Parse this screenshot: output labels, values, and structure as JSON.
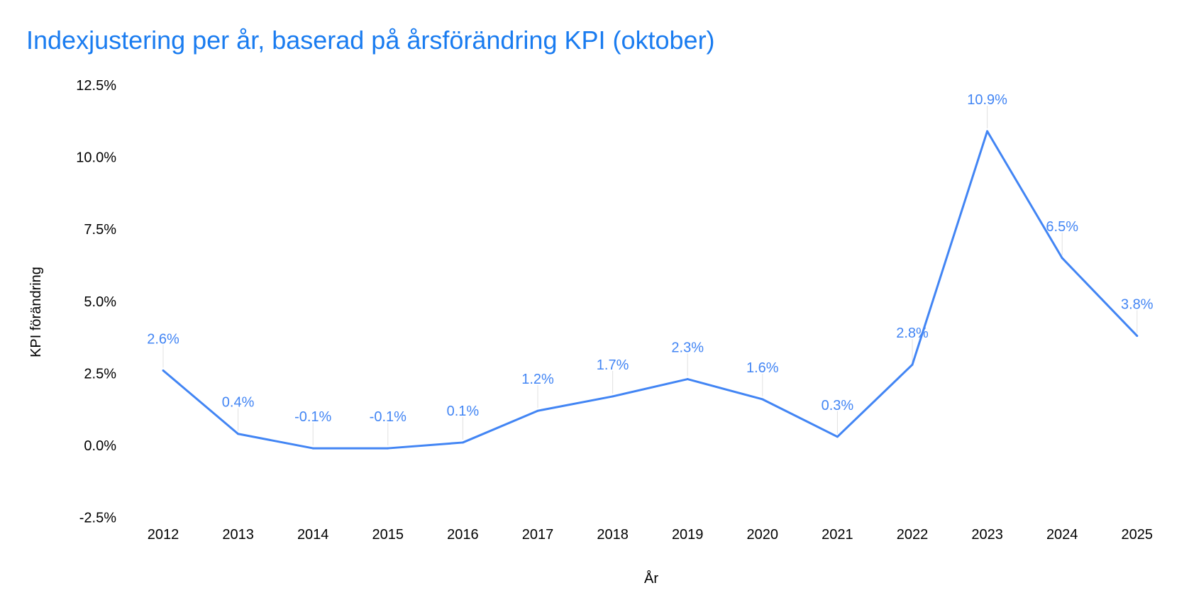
{
  "chart_data": {
    "type": "line",
    "title": "Indexjustering per år, baserad på årsförändring KPI (oktober)",
    "xlabel": "År",
    "ylabel": "KPI förändring",
    "categories": [
      "2012",
      "2013",
      "2014",
      "2015",
      "2016",
      "2017",
      "2018",
      "2019",
      "2020",
      "2021",
      "2022",
      "2023",
      "2024",
      "2025"
    ],
    "values": [
      2.6,
      0.4,
      -0.1,
      -0.1,
      0.1,
      1.2,
      1.7,
      2.3,
      1.6,
      0.3,
      2.8,
      10.9,
      6.5,
      3.8
    ],
    "data_labels": [
      "2.6%",
      "0.4%",
      "-0.1%",
      "-0.1%",
      "0.1%",
      "1.2%",
      "1.7%",
      "2.3%",
      "1.6%",
      "0.3%",
      "2.8%",
      "10.9%",
      "6.5%",
      "3.8%"
    ],
    "ylim": [
      -2.5,
      12.5
    ],
    "yticks": [
      -2.5,
      0,
      2.5,
      5,
      7.5,
      10,
      12.5
    ],
    "ytick_labels": [
      "-2.5%",
      "0.0%",
      "2.5%",
      "5.0%",
      "7.5%",
      "10.0%",
      "12.5%"
    ],
    "grid": false,
    "legend": "none",
    "colors": {
      "line": "#4285f4",
      "title": "#1a7cf0",
      "leader": "#e0e0e0"
    }
  }
}
